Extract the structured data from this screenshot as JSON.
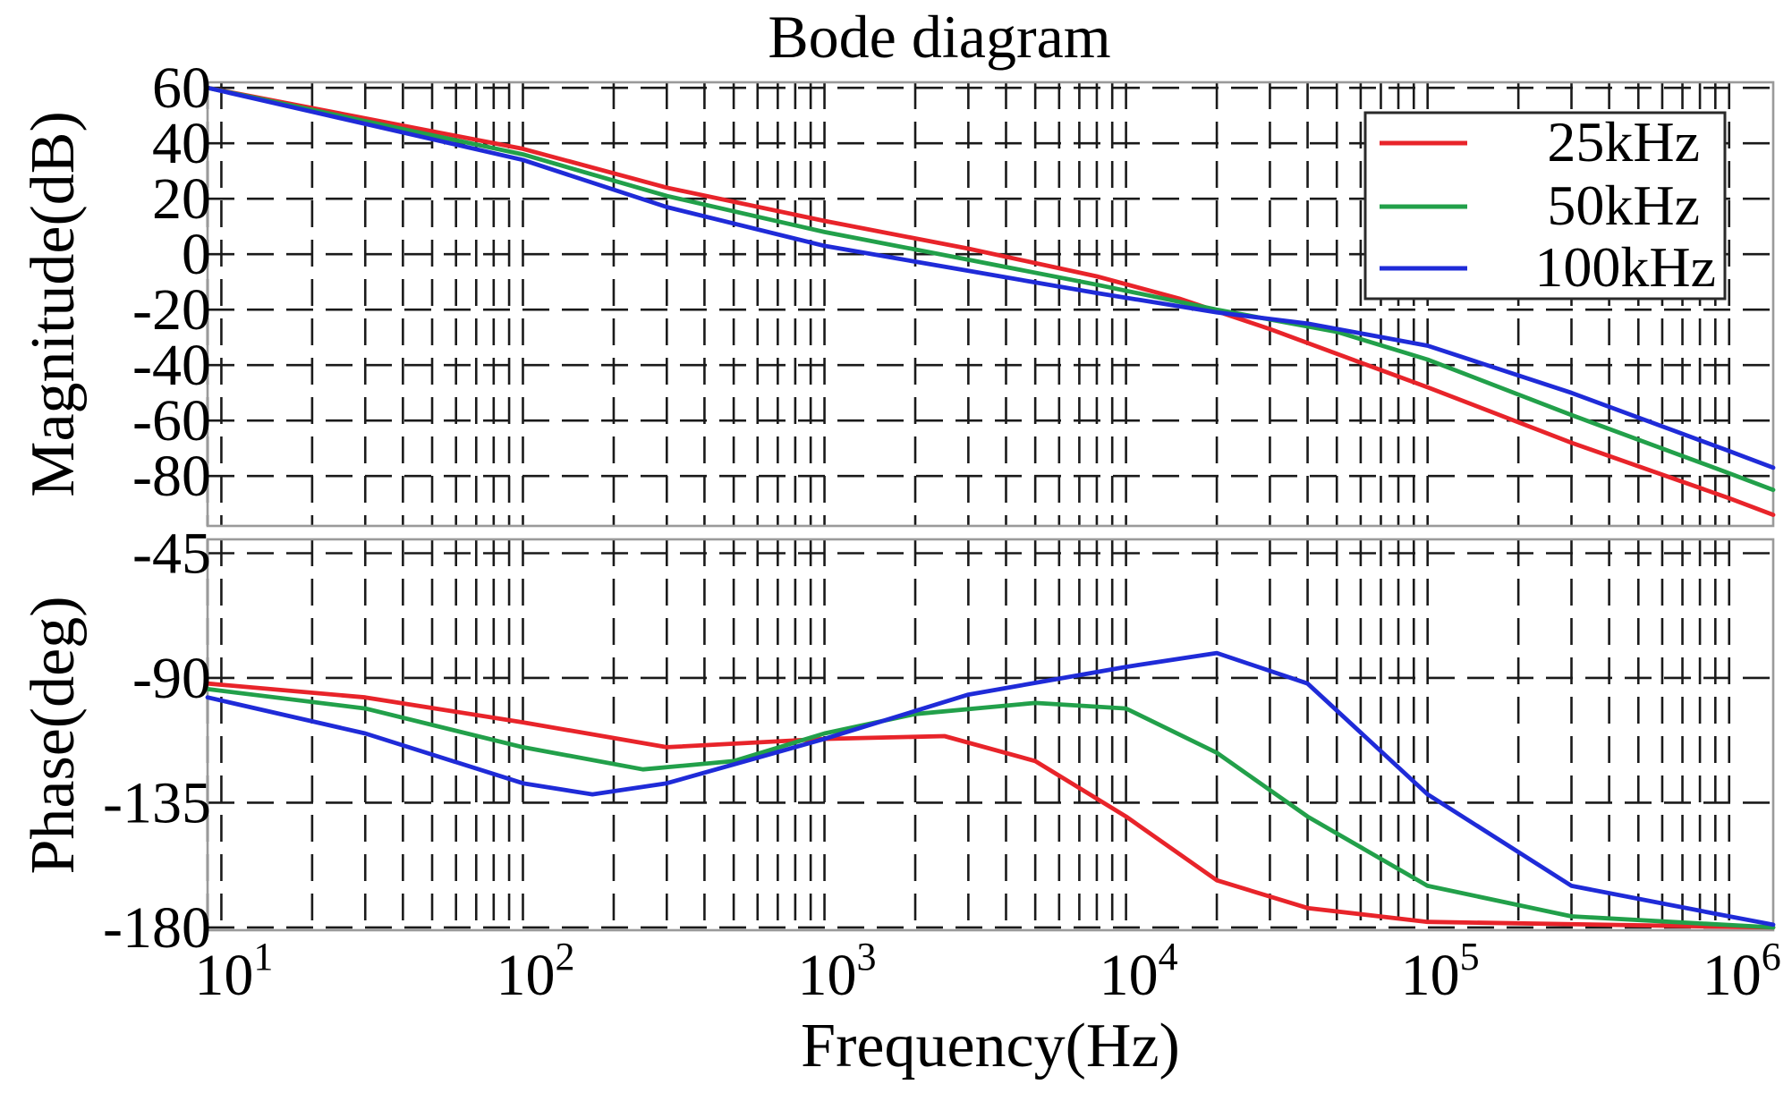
{
  "chart_data": {
    "type": "line",
    "title": "Bode diagram",
    "xlabel": "Frequency(Hz)",
    "x_scale": "log",
    "xlim": [
      9,
      1400000
    ],
    "x_ticks": [
      10,
      100,
      1000,
      10000,
      100000,
      1000000
    ],
    "x_tick_labels": [
      {
        "base": "10",
        "exp": "1"
      },
      {
        "base": "10",
        "exp": "2"
      },
      {
        "base": "10",
        "exp": "3"
      },
      {
        "base": "10",
        "exp": "4"
      },
      {
        "base": "10",
        "exp": "5"
      },
      {
        "base": "10",
        "exp": "6"
      }
    ],
    "grid": true,
    "legend": {
      "placement": "top-right",
      "entries": [
        "25kHz",
        "50kHz",
        "100kHz"
      ]
    },
    "colors": {
      "25kHz": "#e8242a",
      "50kHz": "#22a04a",
      "100kHz": "#1f2bd8"
    },
    "panels": [
      {
        "name": "magnitude",
        "ylabel": "Magnitude(dB)",
        "ylim": [
          -98,
          62
        ],
        "y_ticks": [
          60,
          40,
          20,
          0,
          -20,
          -40,
          -60,
          -80
        ],
        "y_tick_labels": [
          "60",
          "40",
          "20",
          "0",
          "-20",
          "-40",
          "-60",
          "-80"
        ],
        "series": [
          {
            "name": "25kHz",
            "points": [
              [
                9,
                60
              ],
              [
                100,
                38
              ],
              [
                300,
                24
              ],
              [
                1000,
                12
              ],
              [
                3000,
                2
              ],
              [
                8000,
                -8
              ],
              [
                15000,
                -16
              ],
              [
                30000,
                -27
              ],
              [
                100000,
                -48
              ],
              [
                300000,
                -68
              ],
              [
                1000000,
                -88
              ],
              [
                1400000,
                -94
              ]
            ]
          },
          {
            "name": "50kHz",
            "points": [
              [
                9,
                60
              ],
              [
                100,
                36
              ],
              [
                300,
                21
              ],
              [
                1000,
                8
              ],
              [
                3000,
                -2
              ],
              [
                8000,
                -11
              ],
              [
                20000,
                -20
              ],
              [
                50000,
                -28
              ],
              [
                100000,
                -38
              ],
              [
                300000,
                -58
              ],
              [
                1000000,
                -79
              ],
              [
                1400000,
                -85
              ]
            ]
          },
          {
            "name": "100kHz",
            "points": [
              [
                9,
                60
              ],
              [
                100,
                34
              ],
              [
                300,
                17
              ],
              [
                1000,
                3
              ],
              [
                3000,
                -6
              ],
              [
                8000,
                -14
              ],
              [
                20000,
                -21
              ],
              [
                40000,
                -25
              ],
              [
                100000,
                -33
              ],
              [
                300000,
                -50
              ],
              [
                1000000,
                -71
              ],
              [
                1400000,
                -77
              ]
            ]
          }
        ]
      },
      {
        "name": "phase",
        "ylabel": "Phase(deg)",
        "ylim": [
          -181,
          -40
        ],
        "y_ticks": [
          -45,
          -90,
          -135,
          -180
        ],
        "y_tick_labels": [
          "-45",
          "-90",
          "-135",
          "-180"
        ],
        "series": [
          {
            "name": "25kHz",
            "points": [
              [
                9,
                -92
              ],
              [
                30,
                -97
              ],
              [
                100,
                -106
              ],
              [
                300,
                -115
              ],
              [
                1000,
                -112
              ],
              [
                2500,
                -111
              ],
              [
                5000,
                -120
              ],
              [
                10000,
                -140
              ],
              [
                20000,
                -163
              ],
              [
                40000,
                -173
              ],
              [
                100000,
                -178
              ],
              [
                1400000,
                -180
              ]
            ]
          },
          {
            "name": "50kHz",
            "points": [
              [
                9,
                -94
              ],
              [
                30,
                -101
              ],
              [
                100,
                -115
              ],
              [
                250,
                -123
              ],
              [
                500,
                -120
              ],
              [
                1000,
                -110
              ],
              [
                2000,
                -103
              ],
              [
                5000,
                -99
              ],
              [
                10000,
                -101
              ],
              [
                20000,
                -117
              ],
              [
                40000,
                -140
              ],
              [
                100000,
                -165
              ],
              [
                300000,
                -176
              ],
              [
                1400000,
                -180
              ]
            ]
          },
          {
            "name": "100kHz",
            "points": [
              [
                9,
                -97
              ],
              [
                30,
                -110
              ],
              [
                100,
                -128
              ],
              [
                170,
                -132
              ],
              [
                300,
                -128
              ],
              [
                1000,
                -112
              ],
              [
                3000,
                -96
              ],
              [
                10000,
                -86
              ],
              [
                20000,
                -81
              ],
              [
                40000,
                -92
              ],
              [
                100000,
                -132
              ],
              [
                300000,
                -165
              ],
              [
                1000000,
                -176
              ],
              [
                1400000,
                -179
              ]
            ]
          }
        ]
      }
    ]
  }
}
